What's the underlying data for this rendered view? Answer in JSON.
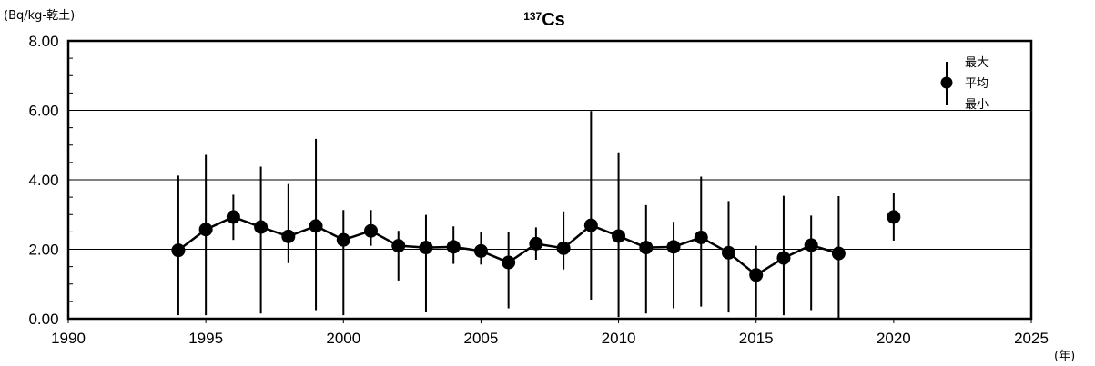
{
  "chart_data": {
    "type": "line",
    "title_sup": "137",
    "title_main": "Cs",
    "ylabel": "(Bq/kg-乾土)",
    "xlabel": "(年)",
    "xlim": [
      1990,
      2025
    ],
    "ylim": [
      0,
      8
    ],
    "x_ticks": [
      "1990",
      "1995",
      "2000",
      "2005",
      "2010",
      "2015",
      "2020",
      "2025"
    ],
    "y_ticks": [
      "0.00",
      "2.00",
      "4.00",
      "6.00",
      "8.00"
    ],
    "grid": "horizontal",
    "legend_position": "top-right",
    "legend": {
      "max": "最大",
      "mean": "平均",
      "min": "最小"
    },
    "series": [
      {
        "x": [
          1994,
          1995,
          1996,
          1997,
          1998,
          1999,
          2000,
          2001,
          2002,
          2003,
          2004,
          2005,
          2006,
          2007,
          2008,
          2009,
          2010,
          2011,
          2012,
          2013,
          2014,
          2015,
          2016,
          2017,
          2018
        ],
        "mean": [
          1.97,
          2.57,
          2.93,
          2.64,
          2.37,
          2.67,
          2.27,
          2.53,
          2.1,
          2.05,
          2.07,
          1.95,
          1.62,
          2.16,
          2.03,
          2.69,
          2.38,
          2.05,
          2.07,
          2.34,
          1.9,
          1.26,
          1.75,
          2.12,
          1.88
        ],
        "max": [
          4.12,
          4.72,
          3.57,
          4.38,
          3.88,
          5.18,
          3.13,
          3.13,
          2.53,
          2.99,
          2.66,
          2.5,
          2.5,
          2.63,
          3.09,
          5.98,
          4.79,
          3.27,
          2.79,
          4.09,
          3.39,
          2.1,
          3.54,
          2.97,
          3.53
        ],
        "min": [
          0.1,
          0.1,
          2.27,
          0.15,
          1.6,
          0.25,
          0.1,
          2.1,
          1.1,
          0.2,
          1.58,
          1.56,
          0.3,
          1.7,
          1.42,
          0.55,
          0.05,
          0.15,
          0.3,
          0.35,
          0.18,
          0.05,
          0.1,
          0.25,
          0.0
        ]
      },
      {
        "x": [
          2020
        ],
        "mean": [
          2.93
        ],
        "max": [
          3.62
        ],
        "min": [
          2.25
        ]
      }
    ]
  }
}
